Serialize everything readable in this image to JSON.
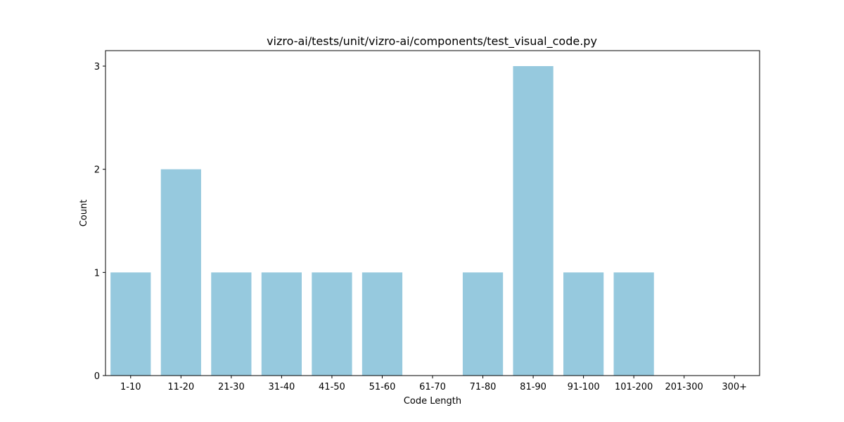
{
  "chart_data": {
    "type": "bar",
    "title": "vizro-ai/tests/unit/vizro-ai/components/test_visual_code.py",
    "xlabel": "Code Length",
    "ylabel": "Count",
    "categories": [
      "1-10",
      "11-20",
      "21-30",
      "31-40",
      "41-50",
      "51-60",
      "61-70",
      "71-80",
      "81-90",
      "91-100",
      "101-200",
      "201-300",
      "300+"
    ],
    "values": [
      1,
      2,
      1,
      1,
      1,
      1,
      0,
      1,
      3,
      1,
      1,
      0,
      0
    ],
    "ylim": [
      0,
      3.15
    ],
    "yticks": [
      0,
      1,
      2,
      3
    ],
    "bar_color": "#96c9de",
    "grid": false
  }
}
